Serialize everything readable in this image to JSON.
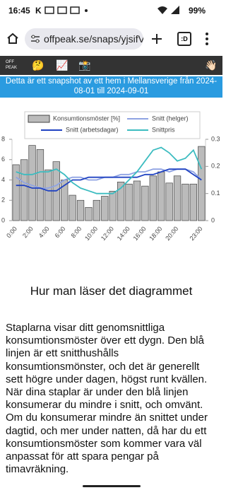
{
  "status": {
    "time": "16:45",
    "k": "K",
    "battery": "99%"
  },
  "browser": {
    "url": "offpeak.se/snaps/yjsifVC",
    "tabs": ":D"
  },
  "toolbar": {
    "logo": "OFF PEAK",
    "icons": [
      "🤔",
      "📈",
      "📸",
      "👋🏻"
    ]
  },
  "banner": "Detta är ett snapshot av ett hem i Mellansverige från 2024-08-01 till 2024-09-01",
  "chart_data": {
    "type": "bar",
    "categories": [
      "0:00",
      null,
      "2:00",
      null,
      "4:00",
      null,
      "6:00",
      null,
      "8:00",
      null,
      "10:00",
      null,
      "12:00",
      null,
      "14:00",
      null,
      "16:00",
      null,
      "18:00",
      null,
      "20:00",
      null,
      null,
      "23:00"
    ],
    "ylim": [
      0,
      8
    ],
    "yticks": [
      0,
      2,
      4,
      6,
      8
    ],
    "y2lim": [
      0,
      0.3
    ],
    "y2ticks": [
      0,
      0.1,
      0.2,
      0.3
    ],
    "series": [
      {
        "name": "Konsumtionsmöster [%]",
        "color": "#bbbbbb",
        "values": [
          5.5,
          6.0,
          7.4,
          7.0,
          5.0,
          5.8,
          4.0,
          2.5,
          2.0,
          1.3,
          2.0,
          2.4,
          2.9,
          3.8,
          3.6,
          3.9,
          3.4,
          4.4,
          4.8,
          3.7,
          4.4,
          3.6,
          3.6,
          7.3
        ]
      },
      {
        "name": "Snitt (helger)",
        "color": "#8fa3e3",
        "axis": "y2",
        "values": [
          0.16,
          0.14,
          0.13,
          0.12,
          0.12,
          0.13,
          0.15,
          0.16,
          0.16,
          0.15,
          0.15,
          0.16,
          0.16,
          0.17,
          0.17,
          0.18,
          0.18,
          0.19,
          0.19,
          0.18,
          0.19,
          0.19,
          0.18,
          0.15
        ]
      },
      {
        "name": "Snitt (arbetsdagar)",
        "color": "#2143c2",
        "axis": "y2",
        "values": [
          0.13,
          0.13,
          0.12,
          0.12,
          0.11,
          0.11,
          0.13,
          0.15,
          0.15,
          0.16,
          0.16,
          0.16,
          0.16,
          0.16,
          0.16,
          0.16,
          0.17,
          0.17,
          0.18,
          0.19,
          0.19,
          0.19,
          0.17,
          0.15
        ]
      },
      {
        "name": "Snittpris",
        "color": "#3cbcc0",
        "axis": "y2",
        "values": [
          0.18,
          0.17,
          0.17,
          0.18,
          0.18,
          0.19,
          0.17,
          0.14,
          0.12,
          0.11,
          0.1,
          0.1,
          0.1,
          0.12,
          0.15,
          0.18,
          0.22,
          0.26,
          0.27,
          0.25,
          0.22,
          0.23,
          0.26,
          0.19
        ]
      }
    ]
  },
  "article": {
    "heading": "Hur man läser det diagrammet",
    "body": "Staplarna visar ditt genomsnittliga konsumtionsmöster över ett dygn. Den blå linjen är ett snitthushålls konsumtionsmönster, och det är generellt sett högre under dagen, högst runt kvällen. När dina staplar är under den blå linjen konsumerar du mindre i snitt, och omvänt. Om du konsumerar mindre än snittet under dagtid, och mer under natten, då har du ett konsumtionsmöster som kommer vara väl anpassat för att spara pengar på timavräkning."
  }
}
